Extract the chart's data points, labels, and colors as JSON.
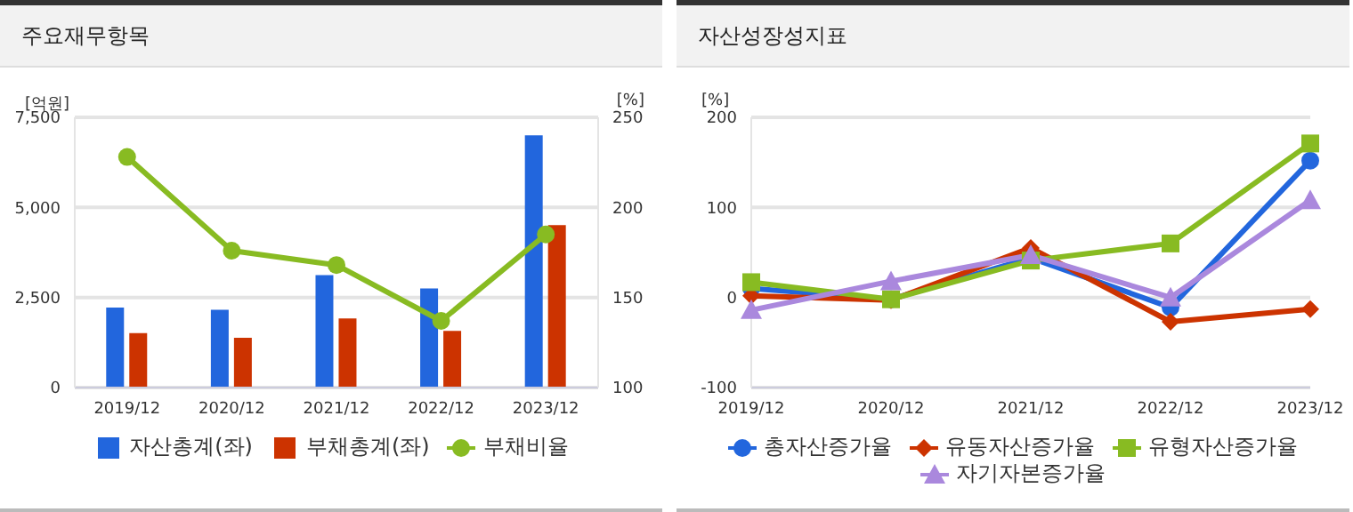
{
  "chart_data": [
    {
      "type": "bar",
      "title": "주요재무항목",
      "ylabel": "[억원]",
      "y2label": "[%]",
      "categories": [
        "2019/12",
        "2020/12",
        "2021/12",
        "2022/12",
        "2023/12"
      ],
      "series": [
        {
          "name": "자산총계(좌)",
          "color": "#2266dd",
          "values": [
            2220,
            2160,
            3120,
            2750,
            7000
          ]
        },
        {
          "name": "부채총계(좌)",
          "color": "#cc3300",
          "values": [
            1510,
            1380,
            1920,
            1570,
            4510
          ]
        },
        {
          "name": "부채비율",
          "type": "line",
          "axis": "y2",
          "color": "#88bb22",
          "marker": "circle",
          "values": [
            228,
            176,
            168,
            137,
            185
          ]
        }
      ],
      "ylim": [
        0,
        7500
      ],
      "yticks": [
        0,
        {
          "value": 2500,
          "label": "2,500"
        },
        {
          "value": 5000,
          "label": "5,000"
        },
        {
          "value": 7500,
          "label": "7,500"
        }
      ],
      "y2lim": [
        100,
        250
      ],
      "y2ticks": [
        100,
        150,
        200,
        250
      ],
      "grid": "y",
      "legend": "bottom"
    },
    {
      "type": "line",
      "title": "자산성장성지표",
      "ylabel": "[%]",
      "categories": [
        "2019/12",
        "2020/12",
        "2021/12",
        "2022/12",
        "2023/12"
      ],
      "series": [
        {
          "name": "총자산증가율",
          "color": "#2266dd",
          "marker": "circle",
          "values": [
            10,
            -2,
            44,
            -11,
            152
          ]
        },
        {
          "name": "유동자산증가율",
          "color": "#cc3300",
          "marker": "diamond",
          "values": [
            2,
            -3,
            55,
            -27,
            -13
          ]
        },
        {
          "name": "유형자산증가율",
          "color": "#88bb22",
          "marker": "square",
          "values": [
            17,
            -2,
            41,
            60,
            171
          ]
        },
        {
          "name": "자기자본증가율",
          "color": "#aa88dd",
          "marker": "triangle",
          "values": [
            -14,
            18,
            47,
            0,
            108
          ]
        }
      ],
      "ylim": [
        -100,
        200
      ],
      "yticks": [
        -100,
        0,
        100,
        200
      ],
      "grid": "y",
      "legend": "bottom"
    }
  ]
}
